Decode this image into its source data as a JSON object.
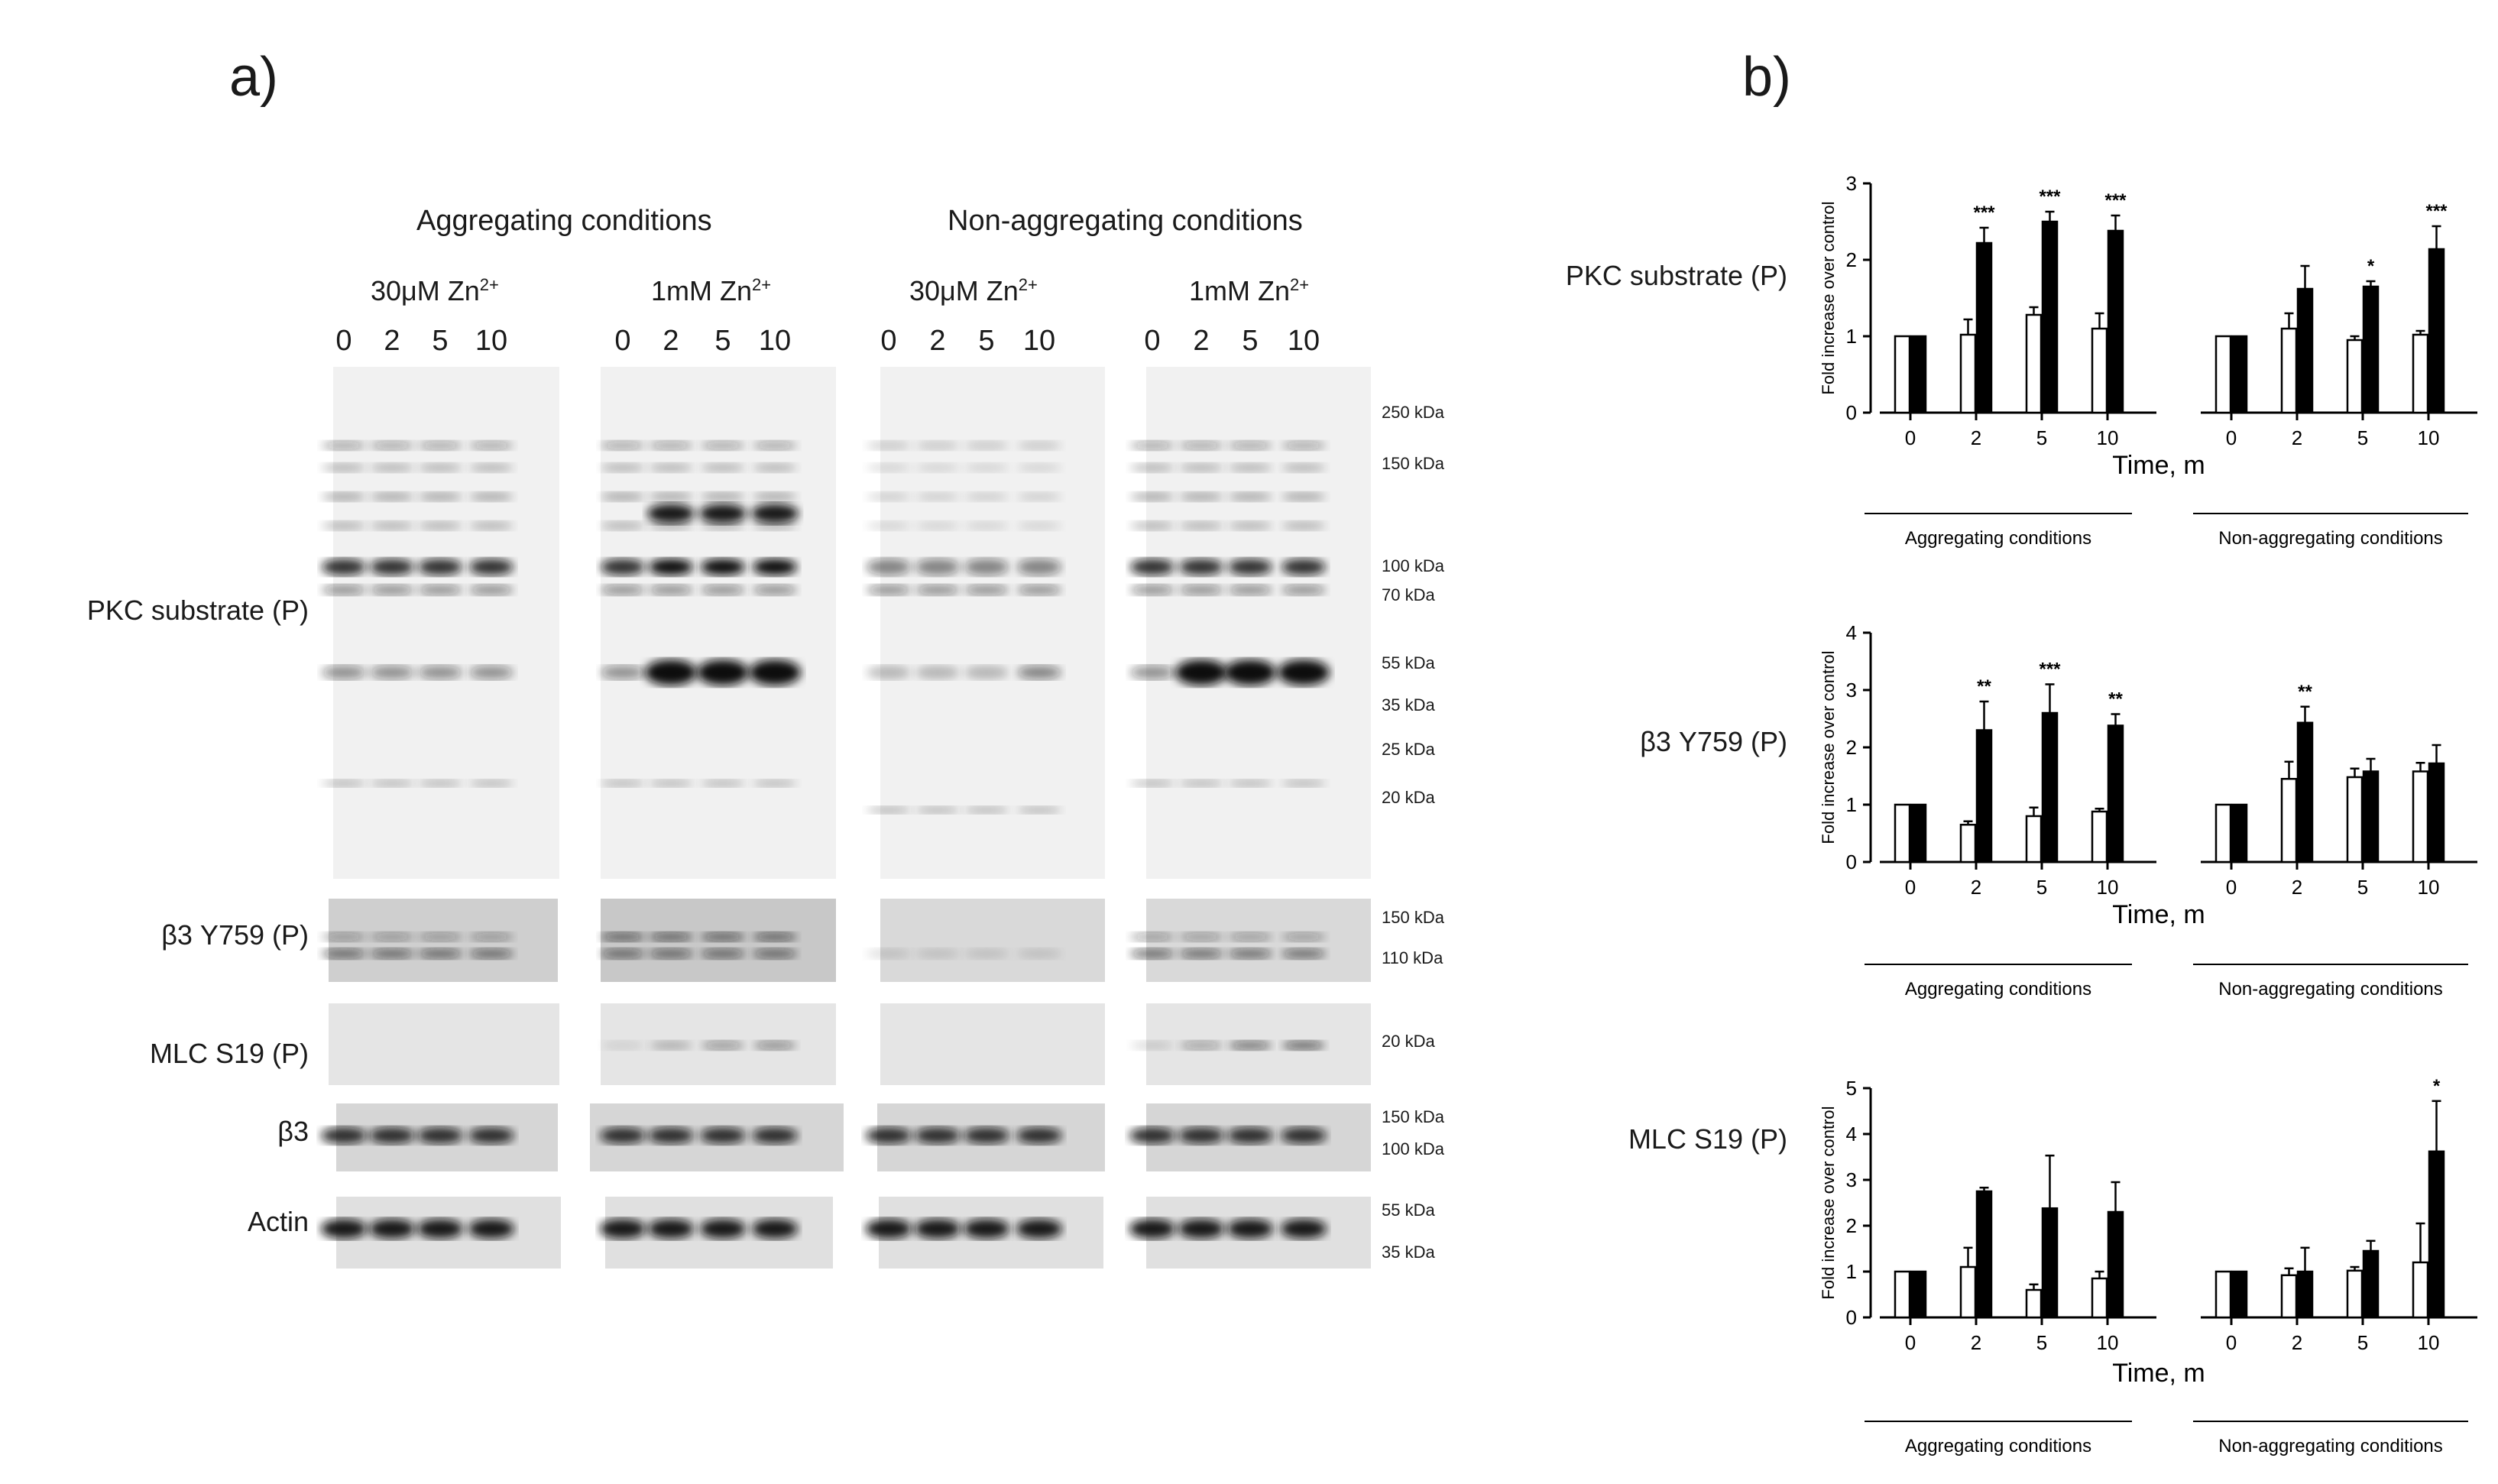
{
  "panel_a": {
    "label": "a)",
    "group_headers": [
      "Aggregating  conditions",
      "Non-aggregating  conditions"
    ],
    "conditions": [
      {
        "base": "30μM  Zn",
        "sup": "2+"
      },
      {
        "base": "1mM Zn",
        "sup": "2+"
      },
      {
        "base": "30μM  Zn",
        "sup": "2+"
      },
      {
        "base": "1mM Zn",
        "sup": "2+"
      }
    ],
    "lanes": [
      "0",
      "2",
      "5",
      "10"
    ],
    "rows": [
      "PKC substrate (P)",
      "β3 Y759 (P)",
      "MLC S19 (P)",
      "β3",
      "Actin"
    ],
    "markers": {
      "pkc": [
        "250 kDa",
        "150 kDa",
        "100 kDa",
        "70 kDa",
        "55 kDa",
        "35 kDa",
        "25 kDa",
        "20 kDa"
      ],
      "b3y759": [
        "150 kDa",
        "110 kDa"
      ],
      "mlc": [
        "20 kDa"
      ],
      "b3": [
        "150 kDa",
        "100 kDa"
      ],
      "actin": [
        "55 kDa",
        "35 kDa"
      ]
    }
  },
  "panel_b": {
    "label": "b)",
    "charts": [
      {
        "title": "PKC substrate (P)"
      },
      {
        "title": "β3 Y759 (P)"
      },
      {
        "title": "MLC S19 (P)"
      }
    ]
  },
  "chart_data": [
    {
      "type": "bar",
      "title": "PKC substrate (P)",
      "ylabel": "Fold increase over control",
      "xlabel": "Time,  m",
      "ylim": [
        0,
        3
      ],
      "yticks": [
        "0",
        "1",
        "2",
        "3"
      ],
      "groups": [
        "Aggregating conditions",
        "Non-aggregating conditions"
      ],
      "categories": [
        "0",
        "2",
        "5",
        "10"
      ],
      "series": [
        {
          "group": "Aggregating conditions",
          "fill": "#ffffff",
          "values": [
            1.0,
            1.02,
            1.28,
            1.1
          ],
          "errors": [
            0,
            0.2,
            0.1,
            0.2
          ],
          "sig": [
            "",
            "",
            "",
            ""
          ]
        },
        {
          "group": "Aggregating conditions",
          "fill": "#000000",
          "values": [
            1.0,
            2.22,
            2.5,
            2.38
          ],
          "errors": [
            0,
            0.2,
            0.13,
            0.2
          ],
          "sig": [
            "",
            "***",
            "***",
            "***"
          ]
        },
        {
          "group": "Non-aggregating conditions",
          "fill": "#ffffff",
          "values": [
            1.0,
            1.1,
            0.95,
            1.02
          ],
          "errors": [
            0,
            0.2,
            0.05,
            0.05
          ],
          "sig": [
            "",
            "",
            "",
            ""
          ]
        },
        {
          "group": "Non-aggregating conditions",
          "fill": "#000000",
          "values": [
            1.0,
            1.62,
            1.65,
            2.14
          ],
          "errors": [
            0,
            0.3,
            0.07,
            0.3
          ],
          "sig": [
            "",
            "",
            "*",
            "***"
          ]
        }
      ]
    },
    {
      "type": "bar",
      "title": "β3 Y759 (P)",
      "ylabel": "Fold increase over control",
      "xlabel": "Time,  m",
      "ylim": [
        0,
        4
      ],
      "yticks": [
        "0",
        "1",
        "2",
        "3",
        "4"
      ],
      "groups": [
        "Aggregating conditions",
        "Non-aggregating conditions"
      ],
      "categories": [
        "0",
        "2",
        "5",
        "10"
      ],
      "series": [
        {
          "group": "Aggregating conditions",
          "fill": "#ffffff",
          "values": [
            1.0,
            0.65,
            0.8,
            0.88
          ],
          "errors": [
            0,
            0.06,
            0.15,
            0.05
          ],
          "sig": [
            "",
            "",
            "",
            ""
          ]
        },
        {
          "group": "Aggregating conditions",
          "fill": "#000000",
          "values": [
            1.0,
            2.3,
            2.6,
            2.38
          ],
          "errors": [
            0,
            0.5,
            0.5,
            0.2
          ],
          "sig": [
            "",
            "**",
            "***",
            "**"
          ]
        },
        {
          "group": "Non-aggregating conditions",
          "fill": "#ffffff",
          "values": [
            1.0,
            1.45,
            1.48,
            1.58
          ],
          "errors": [
            0,
            0.3,
            0.15,
            0.15
          ],
          "sig": [
            "",
            "",
            "",
            ""
          ]
        },
        {
          "group": "Non-aggregating conditions",
          "fill": "#000000",
          "values": [
            1.0,
            2.43,
            1.58,
            1.72
          ],
          "errors": [
            0,
            0.28,
            0.22,
            0.32
          ],
          "sig": [
            "",
            "**",
            "",
            ""
          ]
        }
      ]
    },
    {
      "type": "bar",
      "title": "MLC S19 (P)",
      "ylabel": "Fold increase over control",
      "xlabel": "Time,  m",
      "ylim": [
        0,
        5
      ],
      "yticks": [
        "0",
        "1",
        "2",
        "3",
        "4",
        "5"
      ],
      "groups": [
        "Aggregating conditions",
        "Non-aggregating conditions"
      ],
      "categories": [
        "0",
        "2",
        "5",
        "10"
      ],
      "series": [
        {
          "group": "Aggregating conditions",
          "fill": "#ffffff",
          "values": [
            1.0,
            1.1,
            0.6,
            0.85
          ],
          "errors": [
            0,
            0.42,
            0.12,
            0.15
          ],
          "sig": [
            "",
            "",
            "",
            ""
          ]
        },
        {
          "group": "Aggregating conditions",
          "fill": "#000000",
          "values": [
            1.0,
            2.75,
            2.38,
            2.3
          ],
          "errors": [
            0,
            0.08,
            1.15,
            0.65
          ],
          "sig": [
            "",
            "",
            "",
            ""
          ]
        },
        {
          "group": "Non-aggregating conditions",
          "fill": "#ffffff",
          "values": [
            1.0,
            0.92,
            1.02,
            1.2
          ],
          "errors": [
            0,
            0.15,
            0.08,
            0.85
          ],
          "sig": [
            "",
            "",
            "",
            ""
          ]
        },
        {
          "group": "Non-aggregating conditions",
          "fill": "#000000",
          "values": [
            1.0,
            1.0,
            1.45,
            3.62
          ],
          "errors": [
            0,
            0.52,
            0.22,
            1.1
          ],
          "sig": [
            "",
            "",
            "",
            "*"
          ]
        }
      ]
    }
  ]
}
